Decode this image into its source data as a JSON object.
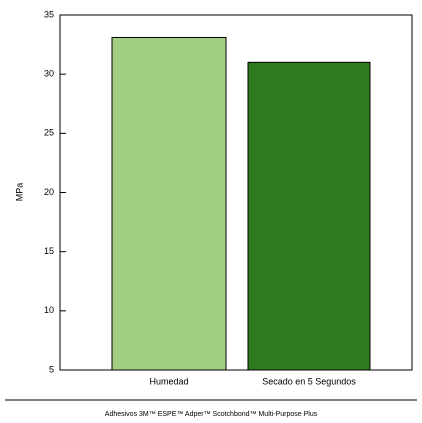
{
  "chart_data": {
    "type": "bar",
    "y_label": "MPa",
    "caption": "Adhesivos 3M™ ESPE™ Adper™ Scotchbond™ Multi-Purpose Plus",
    "categories": [
      "Humedad",
      "Secado en 5 Segundos"
    ],
    "values": [
      33.1,
      31.0
    ],
    "colors": [
      "#a3cf84",
      "#2f7a1e"
    ],
    "ylim": [
      5,
      35
    ],
    "yticks": [
      5,
      10,
      15,
      20,
      25,
      30,
      35
    ]
  }
}
